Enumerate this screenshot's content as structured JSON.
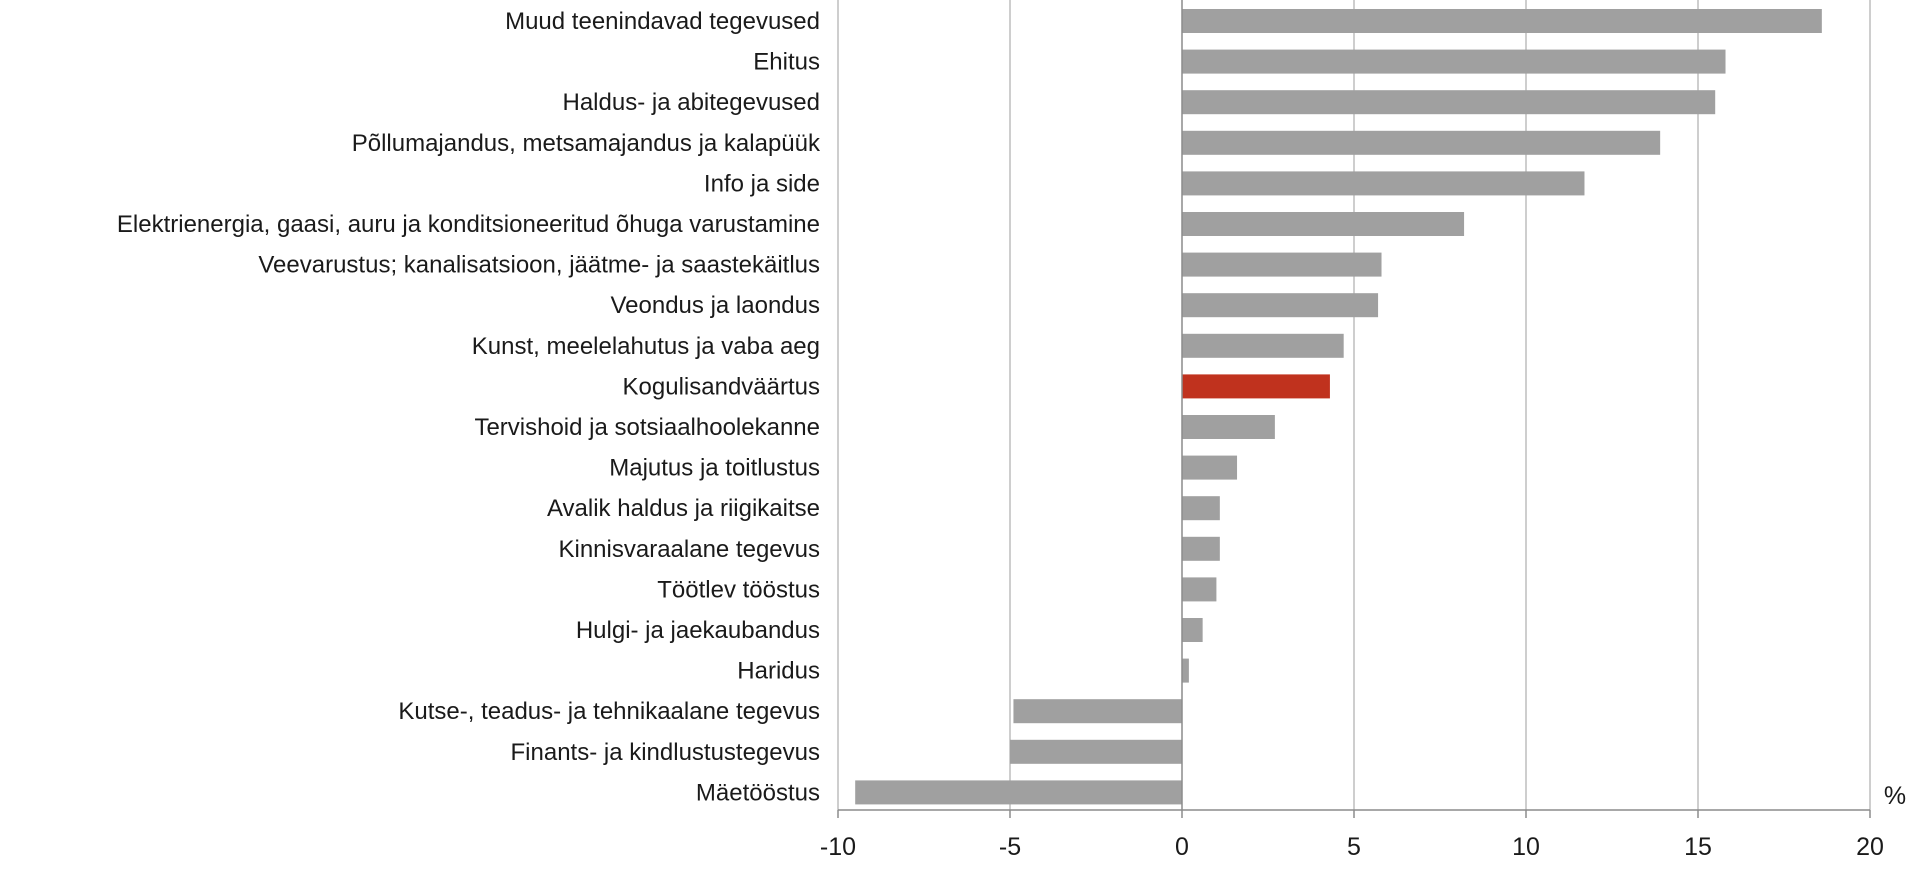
{
  "chart_data": {
    "type": "bar",
    "orientation": "horizontal",
    "title": "",
    "xlabel": "",
    "ylabel": "",
    "unit": "%",
    "xlim": [
      -10,
      20
    ],
    "xticks": [
      -10,
      -5,
      0,
      5,
      10,
      15,
      20
    ],
    "grid": true,
    "categories": [
      "Muud teenindavad tegevused",
      "Ehitus",
      "Haldus- ja abitegevused",
      "Põllumajandus, metsamajandus ja kalapüük",
      "Info ja side",
      "Elektrienergia, gaasi, auru ja konditsioneeritud õhuga varustamine",
      "Veevarustus; kanalisatsioon, jäätme- ja saastekäitlus",
      "Veondus ja laondus",
      "Kunst, meelelahutus ja vaba aeg",
      "Kogulisandväärtus",
      "Tervishoid ja sotsiaalhoolekanne",
      "Majutus ja toitlustus",
      "Avalik haldus ja riigikaitse",
      "Kinnisvaraalane tegevus",
      "Töötlev tööstus",
      "Hulgi- ja jaekaubandus",
      "Haridus",
      "Kutse-, teadus- ja tehnikaalane tegevus",
      "Finants- ja kindlustustegevus",
      "Mäetööstus"
    ],
    "values": [
      18.6,
      15.8,
      15.5,
      13.9,
      11.7,
      8.2,
      5.8,
      5.7,
      4.7,
      4.3,
      2.7,
      1.6,
      1.1,
      1.1,
      1.0,
      0.6,
      0.2,
      -4.9,
      -5.0,
      -9.5
    ],
    "highlight_index": 9,
    "colors": {
      "bar": "#a0a0a0",
      "highlight": "#c0321e",
      "grid": "#bdbdbd",
      "axis": "#8c8c8c",
      "text": "#1a1a1a"
    }
  }
}
